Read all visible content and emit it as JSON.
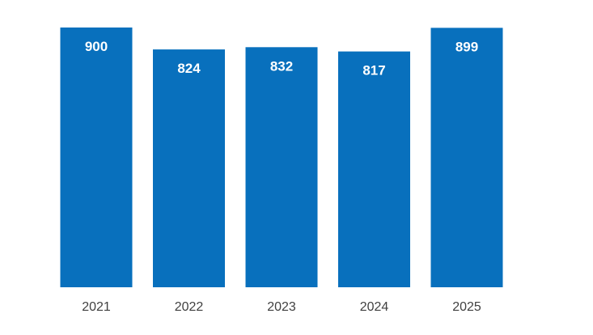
{
  "chart_data": {
    "type": "bar",
    "categories": [
      "2021",
      "2022",
      "2023",
      "2024",
      "2025"
    ],
    "values": [
      900,
      824,
      832,
      817,
      899
    ],
    "value_labels": [
      "900",
      "824",
      "832",
      "817",
      "899"
    ],
    "title": "",
    "xlabel": "",
    "ylabel": "",
    "ylim": [
      0,
      900
    ],
    "grid": false,
    "legend": "none",
    "data_labels": "inside-top",
    "colors": {
      "bar": "#0870bd",
      "value_label": "#ffffff",
      "tick_label": "#404040",
      "background": "#ffffff"
    }
  }
}
